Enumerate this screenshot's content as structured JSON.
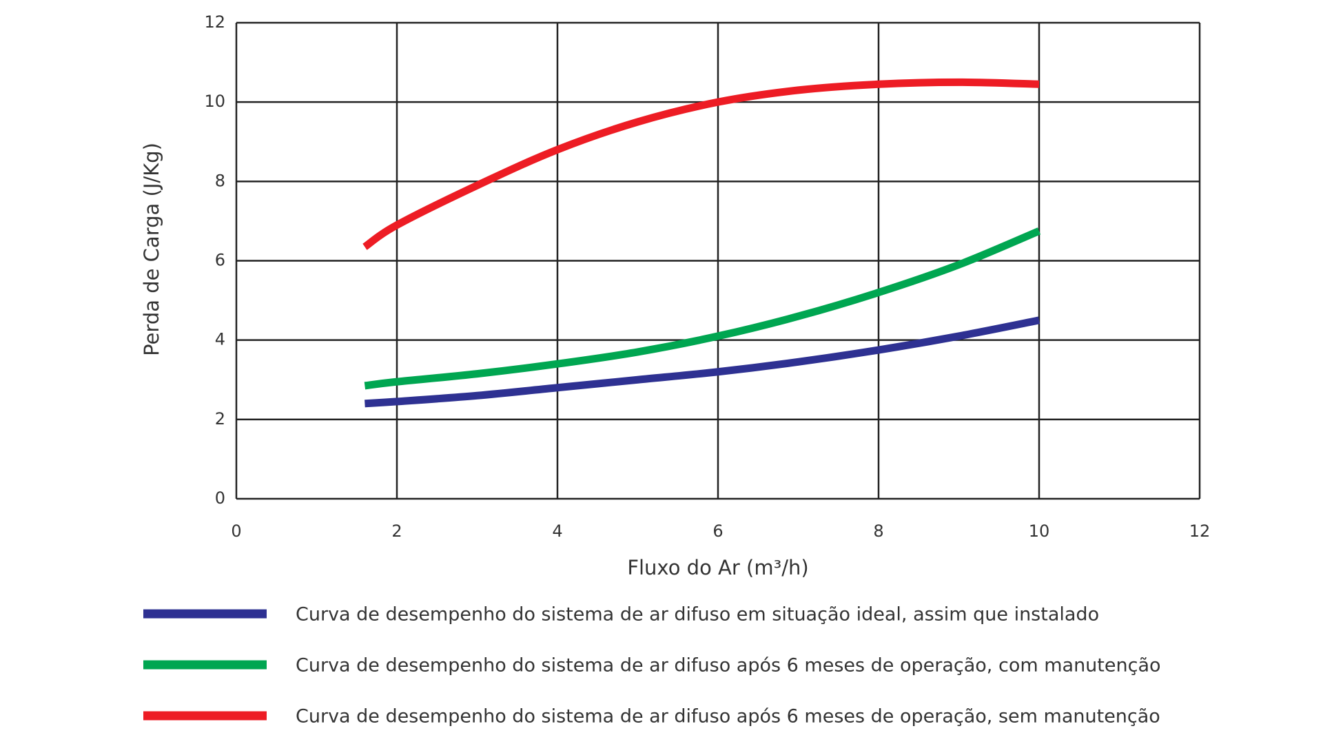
{
  "chart_data": {
    "type": "line",
    "x_label": "Fluxo do Ar (m³/h)",
    "y_label": "Perda de Carga (J/Kg)",
    "x": [
      1.6,
      2,
      3,
      4,
      5,
      6,
      7,
      8,
      9,
      10
    ],
    "series": [
      {
        "name": "Curva de desempenho do sistema de ar difuso em situação ideal, assim que instalado",
        "color": "#2e3192",
        "values": [
          2.4,
          2.45,
          2.6,
          2.8,
          3.0,
          3.2,
          3.45,
          3.75,
          4.1,
          4.5
        ]
      },
      {
        "name": "Curva de desempenho do sistema de ar difuso após 6 meses de operação, com manutenção",
        "color": "#00a651",
        "values": [
          2.85,
          2.95,
          3.15,
          3.4,
          3.7,
          4.1,
          4.6,
          5.2,
          5.9,
          6.75
        ]
      },
      {
        "name": "Curva de desempenho do sistema de ar difuso após 6 meses de operação, sem manutenção",
        "color": "#ed1c24",
        "values": [
          6.35,
          6.9,
          7.9,
          8.8,
          9.5,
          10.0,
          10.3,
          10.45,
          10.5,
          10.45
        ]
      }
    ],
    "xlim": [
      0,
      12
    ],
    "xticks": [
      0,
      2,
      4,
      6,
      8,
      10,
      12
    ],
    "ylim": [
      0,
      12
    ],
    "yticks": [
      0,
      2,
      4,
      6,
      8,
      10,
      12
    ],
    "grid": true,
    "legend": "bottom"
  }
}
